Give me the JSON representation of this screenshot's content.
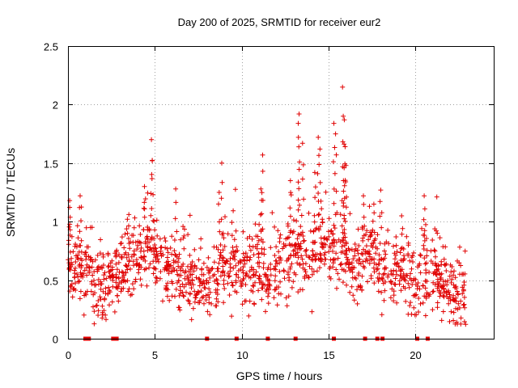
{
  "chart_data": {
    "type": "scatter",
    "title": "Day 200 of 2025, SRMTID for receiver eur2",
    "xlabel": "GPS time / hours",
    "ylabel": "SRMTID / TECUs",
    "xlim": [
      0,
      24.5
    ],
    "ylim": [
      0,
      2.5
    ],
    "x_ticks": [
      0,
      5,
      10,
      15,
      20
    ],
    "y_ticks": [
      0,
      0.5,
      1,
      1.5,
      2,
      2.5
    ],
    "x_tick_labels": [
      "0",
      "5",
      "10",
      "15",
      "20"
    ],
    "y_tick_labels": [
      "0",
      "0.5",
      "1",
      "1.5",
      "2",
      "2.5"
    ],
    "grid": true,
    "marker": "plus",
    "series_color": "#e00000",
    "zero_value_times": [
      1.0,
      1.2,
      2.6,
      2.8,
      8.0,
      9.7,
      11.5,
      13.1,
      15.3,
      17.1,
      17.8,
      18.1,
      20.1,
      20.7
    ],
    "trend": [
      [
        0.0,
        0.7
      ],
      [
        0.5,
        0.62
      ],
      [
        1.0,
        0.58
      ],
      [
        1.5,
        0.5
      ],
      [
        2.0,
        0.45
      ],
      [
        2.5,
        0.5
      ],
      [
        3.0,
        0.55
      ],
      [
        3.5,
        0.65
      ],
      [
        4.0,
        0.72
      ],
      [
        4.5,
        0.75
      ],
      [
        5.0,
        0.7
      ],
      [
        5.5,
        0.62
      ],
      [
        6.0,
        0.6
      ],
      [
        6.5,
        0.58
      ],
      [
        7.0,
        0.5
      ],
      [
        7.5,
        0.42
      ],
      [
        8.0,
        0.45
      ],
      [
        8.5,
        0.5
      ],
      [
        9.0,
        0.62
      ],
      [
        9.5,
        0.68
      ],
      [
        10.0,
        0.55
      ],
      [
        10.5,
        0.58
      ],
      [
        11.0,
        0.62
      ],
      [
        11.5,
        0.52
      ],
      [
        12.0,
        0.6
      ],
      [
        12.5,
        0.65
      ],
      [
        13.0,
        0.7
      ],
      [
        13.5,
        0.72
      ],
      [
        14.0,
        0.68
      ],
      [
        14.5,
        0.78
      ],
      [
        15.0,
        0.8
      ],
      [
        15.5,
        0.75
      ],
      [
        16.0,
        0.72
      ],
      [
        16.5,
        0.65
      ],
      [
        17.0,
        0.68
      ],
      [
        17.5,
        0.7
      ],
      [
        18.0,
        0.6
      ],
      [
        18.5,
        0.55
      ],
      [
        19.0,
        0.52
      ],
      [
        19.5,
        0.5
      ],
      [
        20.0,
        0.48
      ],
      [
        20.5,
        0.55
      ],
      [
        21.0,
        0.55
      ],
      [
        21.5,
        0.48
      ],
      [
        22.0,
        0.4
      ],
      [
        22.5,
        0.38
      ],
      [
        22.9,
        0.42
      ]
    ],
    "peaks": [
      [
        0.1,
        1.18
      ],
      [
        0.7,
        1.22
      ],
      [
        4.4,
        1.3
      ],
      [
        4.8,
        1.7
      ],
      [
        4.85,
        1.52
      ],
      [
        6.2,
        1.28
      ],
      [
        8.7,
        1.25
      ],
      [
        8.85,
        1.5
      ],
      [
        11.1,
        1.28
      ],
      [
        11.2,
        1.57
      ],
      [
        12.8,
        1.35
      ],
      [
        13.3,
        1.92
      ],
      [
        13.25,
        1.84
      ],
      [
        13.5,
        1.67
      ],
      [
        14.4,
        1.72
      ],
      [
        14.5,
        1.62
      ],
      [
        14.2,
        1.42
      ],
      [
        15.3,
        1.84
      ],
      [
        15.4,
        1.75
      ],
      [
        15.8,
        2.15
      ],
      [
        15.9,
        1.87
      ],
      [
        15.95,
        1.64
      ],
      [
        16.0,
        1.48
      ],
      [
        15.85,
        1.35
      ],
      [
        17.0,
        1.22
      ],
      [
        17.6,
        1.15
      ],
      [
        18.0,
        1.27
      ],
      [
        20.5,
        1.22
      ],
      [
        19.2,
        1.05
      ]
    ],
    "point_count": 1400,
    "spread": 0.15
  }
}
